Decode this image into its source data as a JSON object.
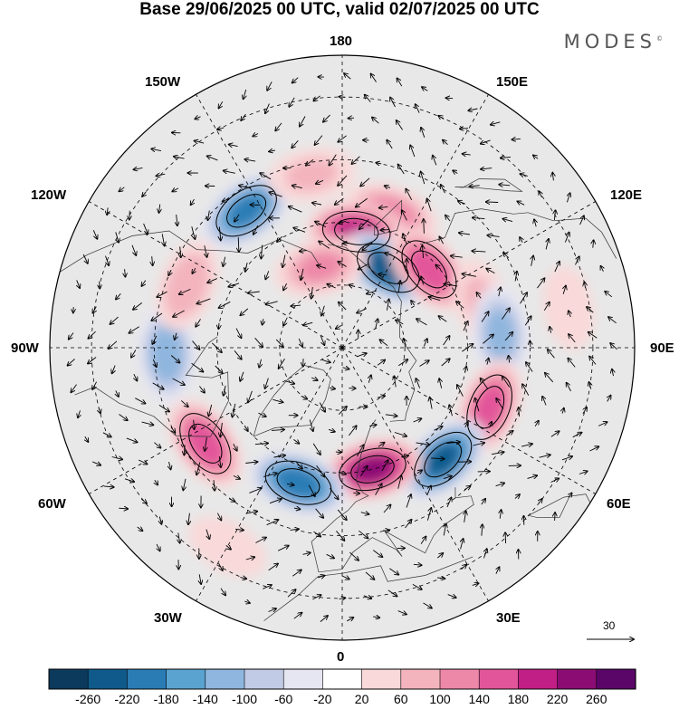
{
  "title": "Base 29/06/2025 00 UTC, valid 02/07/2025 00 UTC",
  "brand": {
    "name": "MODES",
    "mark": "©"
  },
  "lon_labels": {
    "n180": "180",
    "n0": "0",
    "w90": "90W",
    "e90": "90E",
    "w150": "150W",
    "e150": "150E",
    "w120": "120W",
    "e120": "120E",
    "w60": "60W",
    "e60": "60E",
    "w30": "30W",
    "e30": "30E"
  },
  "vector_scale": {
    "label": "30"
  },
  "colorbar": {
    "ticks": [
      "-260",
      "-220",
      "-180",
      "-140",
      "-100",
      "-60",
      "-20",
      "20",
      "60",
      "100",
      "140",
      "180",
      "220",
      "260"
    ],
    "colors": [
      "#0b3a5c",
      "#0f5a8a",
      "#2a7cb5",
      "#5aa3d0",
      "#8fb6de",
      "#c2cbe6",
      "#e6e6f2",
      "#ffffff",
      "#f9d9d9",
      "#f3b4be",
      "#ee88a8",
      "#e2559a",
      "#c21f86",
      "#8b0d74",
      "#5a0668"
    ]
  },
  "anomalies": [
    {
      "lat": 56,
      "lon": 160,
      "v": 120
    },
    {
      "lat": 62,
      "lon": 173,
      "v": 200
    },
    {
      "lat": 68,
      "lon": 150,
      "v": -250
    },
    {
      "lat": 62,
      "lon": 132,
      "v": 170
    },
    {
      "lat": 55,
      "lon": 108,
      "v": 60
    },
    {
      "lat": 52,
      "lon": 95,
      "v": -110
    },
    {
      "lat": 52,
      "lon": 68,
      "v": 160
    },
    {
      "lat": 54,
      "lon": 42,
      "v": -220
    },
    {
      "lat": 60,
      "lon": 14,
      "v": 230
    },
    {
      "lat": 56,
      "lon": -18,
      "v": -210
    },
    {
      "lat": 50,
      "lon": -55,
      "v": 170
    },
    {
      "lat": 48,
      "lon": -88,
      "v": -130
    },
    {
      "lat": 50,
      "lon": -112,
      "v": 90
    },
    {
      "lat": 50,
      "lon": -145,
      "v": -190
    },
    {
      "lat": 48,
      "lon": -170,
      "v": 60
    },
    {
      "lat": 70,
      "lon": -165,
      "v": 100
    },
    {
      "lat": 35,
      "lon": 100,
      "v": 40
    },
    {
      "lat": 35,
      "lon": -30,
      "v": 40
    }
  ]
}
